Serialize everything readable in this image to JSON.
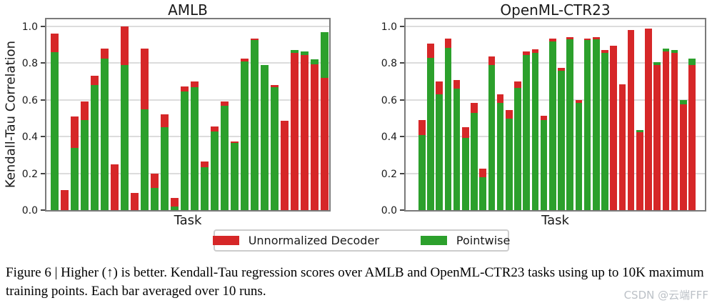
{
  "figure": {
    "caption": "Figure 6 | Higher (↑) is better. Kendall-Tau regression scores over AMLB and OpenML-CTR23 tasks using up to 10K maximum training points. Each bar averaged over 10 runs.",
    "watermark": "CSDN @云端FFF"
  },
  "legend": {
    "entries": [
      {
        "label": "Unnormalized Decoder",
        "color": "#d62728"
      },
      {
        "label": "Pointwise",
        "color": "#2ca02c"
      }
    ]
  },
  "chart_data": [
    {
      "type": "bar",
      "title": "AMLB",
      "xlabel": "Task",
      "ylabel": "Kendall-Tau Correlation",
      "ylim": [
        0,
        1.05
      ],
      "yticks": [
        0.0,
        0.2,
        0.4,
        0.6,
        0.8,
        1.0
      ],
      "grid": true,
      "bar_style": "overlapping; smaller value drawn in front, larger visible above it",
      "x_tick_labels": "none (individual tasks, unlabeled)",
      "series": [
        {
          "name": "Unnormalized Decoder",
          "color": "#d62728",
          "values": [
            0.96,
            0.11,
            0.51,
            0.59,
            0.73,
            0.88,
            0.25,
            1.0,
            0.095,
            0.88,
            0.2,
            0.52,
            0.065,
            0.675,
            0.7,
            0.265,
            0.455,
            0.59,
            0.375,
            0.825,
            0.935,
            0.0,
            0.68,
            0.485,
            0.855,
            0.845,
            0.795,
            0.72
          ]
        },
        {
          "name": "Pointwise",
          "color": "#2ca02c",
          "values": [
            0.86,
            0.0,
            0.34,
            0.49,
            0.68,
            0.825,
            0.0,
            0.79,
            0.0,
            0.55,
            0.12,
            0.45,
            0.02,
            0.645,
            0.67,
            0.235,
            0.43,
            0.57,
            0.365,
            0.81,
            0.925,
            0.79,
            0.67,
            0.0,
            0.872,
            0.862,
            0.82,
            0.97
          ]
        }
      ]
    },
    {
      "type": "bar",
      "title": "OpenML-CTR23",
      "xlabel": "Task",
      "ylabel": "",
      "ylim": [
        0,
        1.05
      ],
      "yticks": [
        0.0,
        0.2,
        0.4,
        0.6,
        0.8,
        1.0
      ],
      "grid": true,
      "bar_style": "overlapping; smaller value drawn in front, larger visible above it",
      "x_tick_labels": "none (individual tasks, unlabeled)",
      "series": [
        {
          "name": "Unnormalized Decoder",
          "color": "#d62728",
          "values": [
            0.49,
            0.905,
            0.7,
            0.935,
            0.71,
            0.45,
            0.585,
            0.225,
            0.835,
            0.63,
            0.545,
            0.7,
            0.865,
            0.875,
            0.515,
            0.935,
            0.775,
            0.94,
            0.6,
            0.935,
            0.94,
            0.87,
            0.895,
            0.685,
            0.98,
            0.425,
            0.99,
            0.79,
            0.865,
            0.855,
            0.575,
            0.79
          ]
        },
        {
          "name": "Pointwise",
          "color": "#2ca02c",
          "values": [
            0.41,
            0.83,
            0.63,
            0.885,
            0.66,
            0.395,
            0.53,
            0.18,
            0.79,
            0.585,
            0.5,
            0.665,
            0.845,
            0.855,
            0.49,
            0.92,
            0.76,
            0.93,
            0.585,
            0.925,
            0.93,
            0.855,
            0.0,
            0.0,
            0.0,
            0.435,
            0.0,
            0.805,
            0.878,
            0.87,
            0.6,
            0.825
          ]
        }
      ]
    }
  ]
}
